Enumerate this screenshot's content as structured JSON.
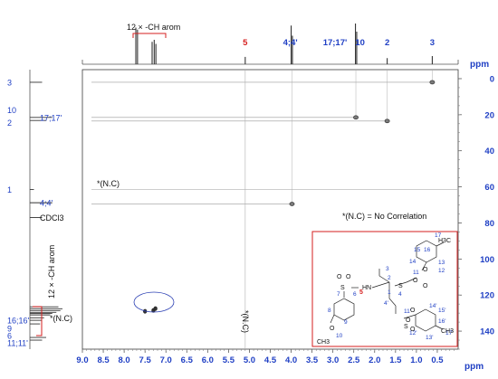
{
  "chart_data": {
    "type": "scatter",
    "title": "",
    "xlabel": "ppm",
    "ylabel": "ppm",
    "x_range": [
      9.0,
      0.0
    ],
    "y_range": [
      -5,
      150
    ],
    "x_ticks": [
      9.0,
      8.5,
      8.0,
      7.5,
      7.0,
      6.5,
      6.0,
      5.5,
      5.0,
      4.5,
      4.0,
      3.5,
      3.0,
      2.5,
      2.0,
      1.5,
      1.0,
      0.5
    ],
    "y_ticks": [
      0,
      20,
      40,
      60,
      80,
      100,
      120,
      140
    ],
    "grid": false,
    "correlations": [
      {
        "label": "3",
        "x": 0.62,
        "y": 2
      },
      {
        "label": "17;17'",
        "x": 2.45,
        "y": 21.5
      },
      {
        "label": "2",
        "x": 1.7,
        "y": 23.5
      },
      {
        "label": "4;4'",
        "x": 3.98,
        "y": 69.5
      },
      {
        "label": "12 × -CH arom",
        "x": 7.5,
        "y": 129
      },
      {
        "label": "12 × -CH arom",
        "x": 7.3,
        "y": 128.5
      },
      {
        "label": "12 × -CH arom",
        "x": 7.25,
        "y": 127.5
      }
    ],
    "proton_peaks": [
      {
        "x": 7.72,
        "h": 0.9
      },
      {
        "x": 7.68,
        "h": 0.85
      },
      {
        "x": 7.33,
        "h": 0.55
      },
      {
        "x": 7.28,
        "h": 0.6
      },
      {
        "x": 7.24,
        "h": 0.5
      },
      {
        "x": 5.1,
        "h": 0.18
      },
      {
        "x": 4.0,
        "h": 0.95
      },
      {
        "x": 3.97,
        "h": 0.7
      },
      {
        "x": 2.46,
        "h": 1.0
      },
      {
        "x": 2.43,
        "h": 0.8
      },
      {
        "x": 1.7,
        "h": 0.15
      },
      {
        "x": 0.62,
        "h": 0.2
      }
    ],
    "carbon_peaks": [
      {
        "y": 2,
        "h": 0.3
      },
      {
        "y": 21.5,
        "h": 0.55
      },
      {
        "y": 23.2,
        "h": 0.4
      },
      {
        "y": 61.5,
        "h": 0.1
      },
      {
        "y": 68.8,
        "h": 0.55
      },
      {
        "y": 77,
        "h": 0.3
      },
      {
        "y": 126.5,
        "h": 0.7
      },
      {
        "y": 127.6,
        "h": 0.8
      },
      {
        "y": 128.6,
        "h": 0.75
      },
      {
        "y": 129.6,
        "h": 0.65
      },
      {
        "y": 130.2,
        "h": 0.55
      },
      {
        "y": 131,
        "h": 0.5
      },
      {
        "y": 132.6,
        "h": 0.35
      },
      {
        "y": 134,
        "h": 0.3
      },
      {
        "y": 136,
        "h": 0.25
      },
      {
        "y": 143.5,
        "h": 0.4
      },
      {
        "y": 145,
        "h": 0.3
      }
    ],
    "top_labels": [
      {
        "text": "5",
        "x": 5.1,
        "color": "#d61f1f"
      },
      {
        "text": "4;4'",
        "x": 4.02,
        "color": "#1f3fc4"
      },
      {
        "text": "17;17'",
        "x": 2.95,
        "color": "#1f3fc4"
      },
      {
        "text": "10",
        "x": 2.35,
        "color": "#1f3fc4"
      },
      {
        "text": "2",
        "x": 1.7,
        "color": "#1f3fc4"
      },
      {
        "text": "3",
        "x": 0.62,
        "color": "#1f3fc4"
      }
    ],
    "top_group_label": "12 × -CH arom",
    "left_labels": [
      {
        "text": "3",
        "y": 2,
        "color": "#1f3fc4"
      },
      {
        "text": "10",
        "y": 20,
        "color": "#1f3fc4"
      },
      {
        "text": "17;17'",
        "y": 21.6,
        "color": "#1f3fc4"
      },
      {
        "text": "2",
        "y": 24.5,
        "color": "#1f3fc4"
      },
      {
        "text": "1",
        "y": 61.5,
        "color": "#1f3fc4"
      },
      {
        "text": "4;4'",
        "y": 68.8,
        "color": "#1f3fc4"
      },
      {
        "text": "CDCl3",
        "y": 77,
        "color": "#111111"
      },
      {
        "text": "16;16'",
        "y": 134,
        "color": "#1f3fc4"
      },
      {
        "text": "9",
        "y": 138.5,
        "color": "#1f3fc4"
      },
      {
        "text": "6",
        "y": 142.5,
        "color": "#1f3fc4"
      },
      {
        "text": "11;11'",
        "y": 146.5,
        "color": "#1f3fc4"
      }
    ],
    "left_group_label": "12 × -CH arom",
    "no_correlation_markers": [
      {
        "text": "*(N.C)",
        "where": "carbon 1"
      },
      {
        "text": "*(N.C)",
        "where": "proton 5"
      },
      {
        "text": "*(N.C)",
        "where": "carbons 6, 9, 11, 16"
      }
    ],
    "annotation": "*(N.C) = No Correlation",
    "structure_labels": {
      "blue": [
        "17",
        "15",
        "16",
        "14",
        "13",
        "11",
        "12",
        "3",
        "2",
        "1",
        "4",
        "7",
        "6",
        "8",
        "9",
        "10",
        "4'",
        "11'",
        "14'",
        "15'",
        "16'",
        "12'",
        "13'",
        "17'"
      ],
      "red": [
        "5"
      ],
      "atoms": [
        "HN",
        "S",
        "O",
        "O",
        "O",
        "O",
        "O",
        "S",
        "O",
        "O",
        "O",
        "S",
        "O",
        "H3C",
        "CH3",
        "CH3"
      ]
    }
  }
}
